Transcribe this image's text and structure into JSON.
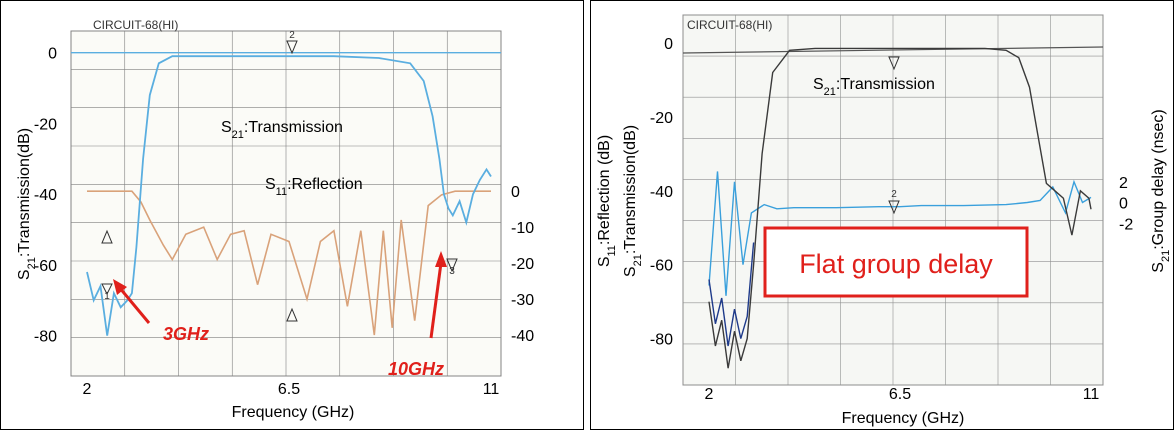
{
  "chart_data": [
    {
      "type": "line",
      "instrument_header": "CIRCUIT-68(HI)",
      "xlabel": "Frequency (GHz)",
      "ylabel_left": "S21:Transmission(dB)",
      "xticks": [
        "2",
        "6.5",
        "11"
      ],
      "xlim": [
        2,
        11
      ],
      "yticks_left": [
        "0",
        "-20",
        "-40",
        "-60",
        "-80"
      ],
      "ylim_left": [
        -90,
        5
      ],
      "yticks_right": [
        "0",
        "-10",
        "-20",
        "-30",
        "-40"
      ],
      "ylim_right": [
        -45,
        2
      ],
      "grid": true,
      "colors": {
        "transmission": "#5aaee0",
        "reflection": "#d9a27a",
        "annotation": "#e0201b",
        "grid": "#808080"
      },
      "labels": {
        "transmission": "S21:Transmission",
        "reflection": "S11:Reflection",
        "low_edge": "3GHz",
        "high_edge": "10GHz"
      },
      "markers": [
        "1",
        "2",
        "3"
      ],
      "series": [
        {
          "name": "S21:Transmission",
          "axis": "left",
          "x": [
            2.0,
            2.15,
            2.3,
            2.45,
            2.6,
            2.75,
            2.9,
            3.0,
            3.1,
            3.25,
            3.4,
            3.6,
            3.9,
            4.5,
            5.5,
            6.5,
            7.5,
            8.5,
            9.2,
            9.5,
            9.7,
            9.85,
            9.95,
            10.05,
            10.15,
            10.3,
            10.45,
            10.6,
            10.75,
            10.9,
            11.0
          ],
          "y": [
            -62,
            -70,
            -66,
            -80,
            -68,
            -72,
            -70,
            -68,
            -55,
            -30,
            -12,
            -3,
            -1,
            -1,
            -1,
            -1,
            -1,
            -1.5,
            -3,
            -8,
            -18,
            -30,
            -40,
            -44,
            -46,
            -42,
            -48,
            -40,
            -36,
            -33,
            -35
          ]
        },
        {
          "name": "S11:Reflection",
          "axis": "right",
          "x": [
            2.0,
            2.5,
            3.0,
            3.2,
            3.4,
            3.7,
            3.9,
            4.2,
            4.6,
            4.9,
            5.2,
            5.5,
            5.8,
            6.1,
            6.5,
            6.9,
            7.2,
            7.5,
            7.8,
            8.1,
            8.4,
            8.6,
            8.8,
            9.0,
            9.3,
            9.6,
            9.9,
            10.2,
            10.6,
            11.0
          ],
          "y": [
            0,
            0,
            0,
            -3,
            -8,
            -15,
            -19,
            -12,
            -10,
            -19,
            -12,
            -11,
            -26,
            -12,
            -14,
            -30,
            -14,
            -11,
            -32,
            -11,
            -40,
            -11,
            -38,
            -8,
            -36,
            -4,
            -1,
            0,
            0,
            0
          ]
        }
      ]
    },
    {
      "type": "line",
      "instrument_header": "CIRCUIT-68(HI)",
      "xlabel": "Frequency (GHz)",
      "ylabel_left": "S21:Transmission(dB)",
      "ylabel_left_outer": "S11:Reflection (dB)",
      "ylabel_right": "S21:Group delay (nsec)",
      "xticks": [
        "2",
        "6.5",
        "11"
      ],
      "xlim": [
        2,
        11
      ],
      "yticks_left": [
        "0",
        "-20",
        "-40",
        "-60",
        "-80"
      ],
      "ylim_left": [
        -92,
        7
      ],
      "yticks_right": [
        "2",
        "0",
        "-2"
      ],
      "ylim_right": [
        -9.5,
        4.2
      ],
      "grid": true,
      "colors": {
        "transmission": "#3a3a3a",
        "group_delay": "#3aa0dc",
        "low_freq": "#1e3a8a",
        "callout_border": "#e0201b",
        "callout_text": "#e0201b"
      },
      "labels": {
        "transmission": "S21:Transmission",
        "callout": "Flat group delay"
      },
      "markers": [
        "2"
      ],
      "series": [
        {
          "name": "S21:Transmission",
          "axis": "left",
          "x": [
            2.0,
            2.15,
            2.3,
            2.45,
            2.6,
            2.75,
            2.9,
            3.05,
            3.25,
            3.5,
            3.9,
            4.5,
            5.5,
            6.5,
            7.5,
            8.5,
            9.0,
            9.3,
            9.55,
            9.75,
            9.95,
            10.15,
            10.35,
            10.55,
            10.75,
            10.95,
            11.0
          ],
          "y": [
            -70,
            -82,
            -75,
            -88,
            -78,
            -86,
            -80,
            -60,
            -30,
            -8,
            -2,
            -1.5,
            -1.5,
            -1.5,
            -1.5,
            -1.5,
            -2,
            -4,
            -12,
            -25,
            -38,
            -40,
            -42,
            -52,
            -40,
            -42,
            -45
          ]
        },
        {
          "name": "S21:Group delay",
          "axis": "right",
          "x": [
            2.0,
            2.2,
            2.4,
            2.6,
            2.8,
            3.0,
            3.3,
            3.6,
            4.0,
            5.0,
            6.0,
            6.5,
            7.0,
            8.0,
            9.0,
            9.5,
            9.8,
            10.1,
            10.4,
            10.6,
            10.8,
            11.0
          ],
          "y": [
            -8,
            3,
            -9,
            2,
            -6,
            -1,
            -0.2,
            -0.6,
            -0.5,
            -0.5,
            -0.4,
            -0.4,
            -0.3,
            -0.3,
            -0.2,
            0,
            0.2,
            1.5,
            -1,
            2,
            0,
            0.5
          ]
        }
      ]
    }
  ]
}
